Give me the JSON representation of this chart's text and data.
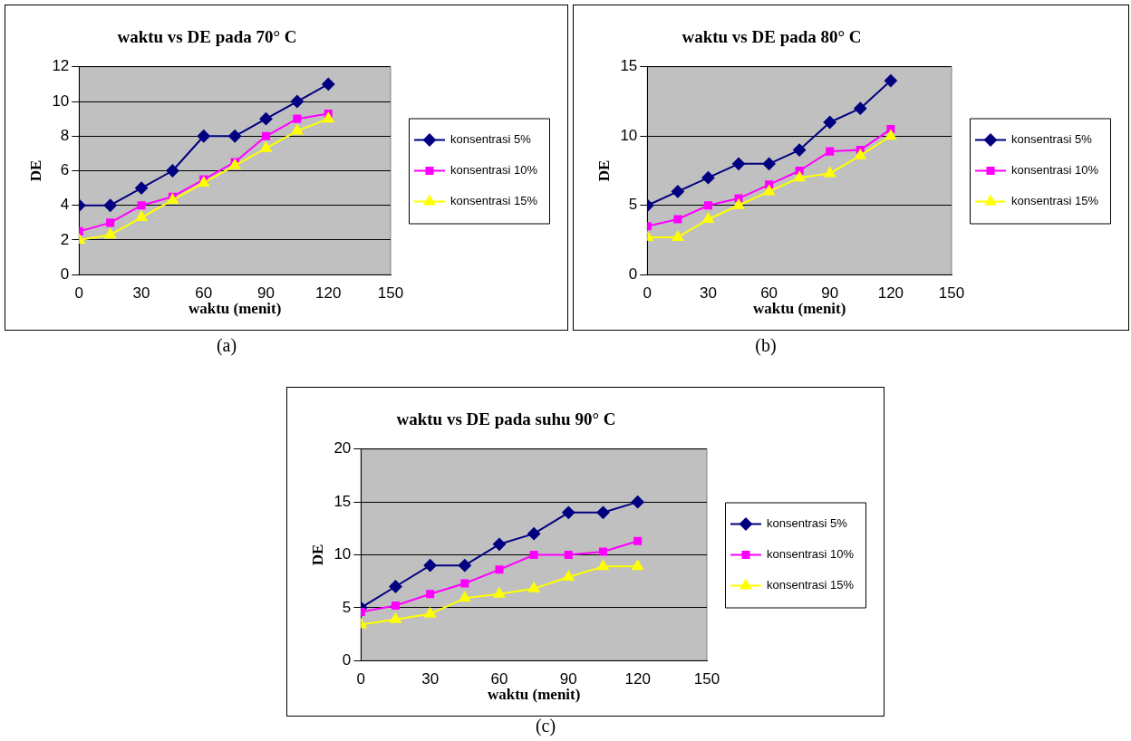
{
  "chart_data": [
    {
      "type": "line",
      "title": "waktu vs DE pada 70° C",
      "xlabel": "waktu (menit)",
      "ylabel": "DE",
      "x": [
        0,
        15,
        30,
        45,
        60,
        75,
        90,
        105,
        120
      ],
      "xlim": [
        0,
        150
      ],
      "xticks": [
        0,
        30,
        60,
        90,
        120,
        150
      ],
      "ylim": [
        0,
        12
      ],
      "yticks": [
        0,
        2,
        4,
        6,
        8,
        10,
        12
      ],
      "grid": "y",
      "legend": "right",
      "annotations": [
        "(a)"
      ],
      "series": [
        {
          "name": "konsentrasi 5%",
          "color": "#000080",
          "marker": "diamond",
          "values": [
            4,
            4,
            5,
            6,
            8,
            8,
            9,
            10,
            11
          ]
        },
        {
          "name": "konsentrasi 10%",
          "color": "#ff00ff",
          "marker": "square",
          "values": [
            2.5,
            3,
            4,
            4.5,
            5.5,
            6.5,
            8,
            9,
            9.3
          ]
        },
        {
          "name": "konsentrasi 15%",
          "color": "#ffff00",
          "marker": "triangle",
          "values": [
            2,
            2.3,
            3.3,
            4.3,
            5.3,
            6.3,
            7.3,
            8.3,
            9
          ]
        }
      ]
    },
    {
      "type": "line",
      "title": "waktu vs DE pada 80° C",
      "xlabel": "waktu (menit)",
      "ylabel": "DE",
      "x": [
        0,
        15,
        30,
        45,
        60,
        75,
        90,
        105,
        120
      ],
      "xlim": [
        0,
        150
      ],
      "xticks": [
        0,
        30,
        60,
        90,
        120,
        150
      ],
      "ylim": [
        0,
        15
      ],
      "yticks": [
        0,
        5,
        10,
        15
      ],
      "grid": "y",
      "legend": "right",
      "annotations": [
        "(b)"
      ],
      "series": [
        {
          "name": "konsentrasi 5%",
          "color": "#000080",
          "marker": "diamond",
          "values": [
            5,
            6,
            7,
            8,
            8,
            9,
            11,
            12,
            14
          ]
        },
        {
          "name": "konsentrasi 10%",
          "color": "#ff00ff",
          "marker": "square",
          "values": [
            3.5,
            4,
            5,
            5.5,
            6.5,
            7.5,
            8.9,
            9,
            10.5
          ]
        },
        {
          "name": "konsentrasi 15%",
          "color": "#ffff00",
          "marker": "triangle",
          "values": [
            2.7,
            2.7,
            4,
            5,
            6,
            7,
            7.3,
            8.6,
            10
          ]
        }
      ]
    },
    {
      "type": "line",
      "title": "waktu vs DE pada suhu 90° C",
      "xlabel": "waktu (menit)",
      "ylabel": "DE",
      "x": [
        0,
        15,
        30,
        45,
        60,
        75,
        90,
        105,
        120
      ],
      "xlim": [
        0,
        150
      ],
      "xticks": [
        0,
        30,
        60,
        90,
        120,
        150
      ],
      "ylim": [
        0,
        20
      ],
      "yticks": [
        0,
        5,
        10,
        15,
        20
      ],
      "grid": "y",
      "legend": "right",
      "annotations": [
        "(c)"
      ],
      "series": [
        {
          "name": "konsentrasi 5%",
          "color": "#000080",
          "marker": "diamond",
          "values": [
            5,
            7,
            9,
            9,
            11,
            12,
            14,
            14,
            15
          ]
        },
        {
          "name": "konsentrasi 10%",
          "color": "#ff00ff",
          "marker": "square",
          "values": [
            4.6,
            5.2,
            6.3,
            7.3,
            8.6,
            10,
            10,
            10.3,
            11.3
          ]
        },
        {
          "name": "konsentrasi 15%",
          "color": "#ffff00",
          "marker": "triangle",
          "values": [
            3.4,
            3.9,
            4.4,
            5.9,
            6.3,
            6.8,
            7.9,
            8.9,
            8.9
          ]
        }
      ]
    }
  ]
}
